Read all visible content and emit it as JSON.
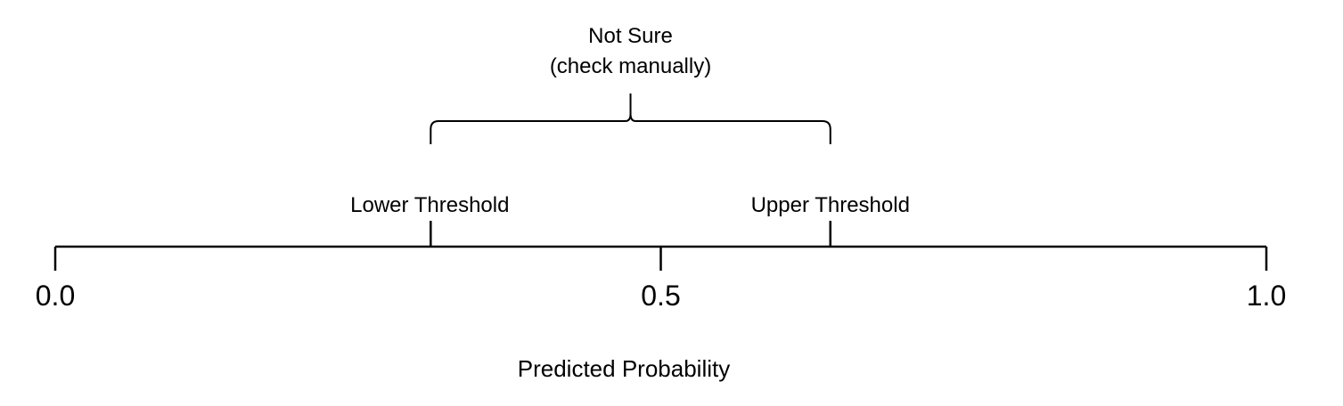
{
  "axis": {
    "min": 0.0,
    "max": 1.0,
    "ticks": [
      {
        "value": 0.0,
        "label": "0.0"
      },
      {
        "value": 0.5,
        "label": "0.5"
      },
      {
        "value": 1.0,
        "label": "1.0"
      }
    ],
    "xlabel": "Predicted Probability"
  },
  "thresholds": {
    "lower": {
      "value": 0.31,
      "label": "Lower Threshold"
    },
    "upper": {
      "value": 0.64,
      "label": "Upper Threshold"
    }
  },
  "uncertain_region": {
    "line1": "Not Sure",
    "line2": "(check manually)"
  },
  "colors": {
    "line": "#000000",
    "text": "#000000",
    "background": "#ffffff"
  }
}
